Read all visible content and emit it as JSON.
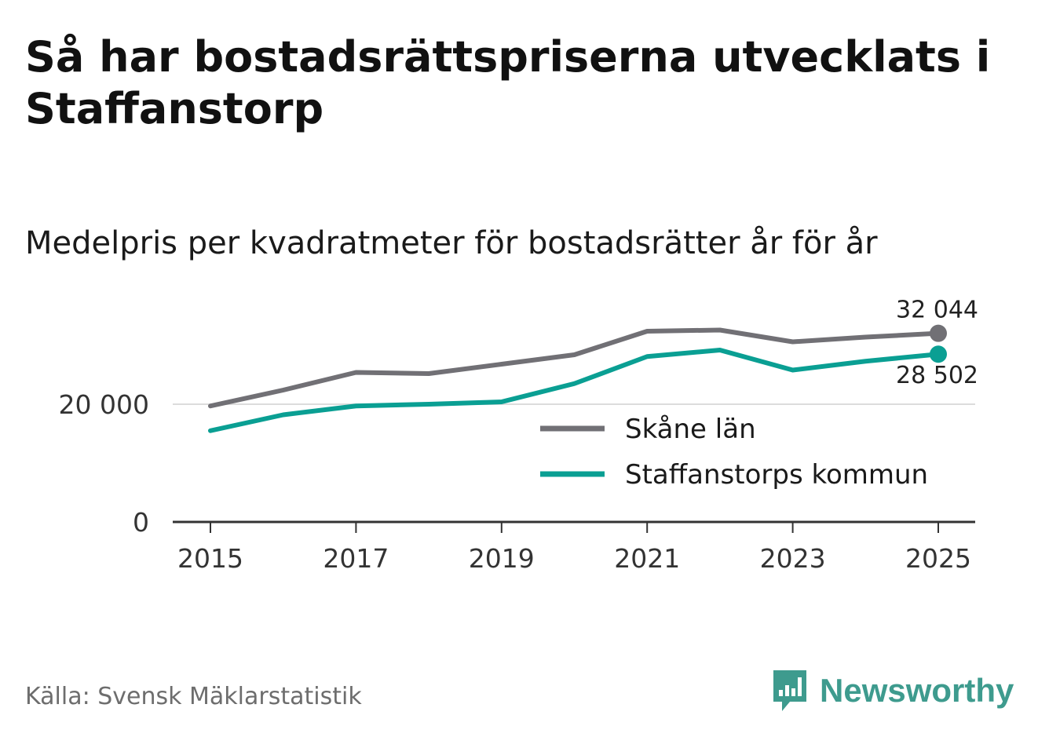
{
  "title": "Så har bostadsrättspriserna utvecklats i Staffanstorp",
  "subtitle": "Medelpris per kvadratmeter för bostadsrätter år för år",
  "source": "Källa: Svensk Mäklarstatistik",
  "brand": {
    "name": "Newsworthy",
    "icon": "newsworthy-logo-icon",
    "color": "#3e9b8e"
  },
  "chart_data": {
    "type": "line",
    "title": "Så har bostadsrättspriserna utvecklats i Staffanstorp",
    "subtitle": "Medelpris per kvadratmeter för bostadsrätter år för år",
    "xlabel": "",
    "ylabel": "",
    "x": [
      2015,
      2016,
      2017,
      2018,
      2019,
      2020,
      2021,
      2022,
      2023,
      2024,
      2025
    ],
    "xticks": [
      "2015",
      "2017",
      "2019",
      "2021",
      "2023",
      "2025"
    ],
    "yticks": [
      0,
      20000
    ],
    "ytick_labels": [
      "0",
      "20 000"
    ],
    "ylim": [
      0,
      40000
    ],
    "grid": "horizontal at 20 000",
    "legend_position": "center-right",
    "series": [
      {
        "name": "Skåne län",
        "color": "#717075",
        "values": [
          19700,
          22400,
          25400,
          25200,
          26800,
          28400,
          32400,
          32600,
          30600,
          31400,
          32044
        ],
        "end_label": "32 044"
      },
      {
        "name": "Staffanstorps kommun",
        "color": "#0a9f93",
        "values": [
          15500,
          18200,
          19700,
          20000,
          20400,
          23500,
          28100,
          29200,
          25800,
          27300,
          28502
        ],
        "end_label": "28 502"
      }
    ]
  }
}
